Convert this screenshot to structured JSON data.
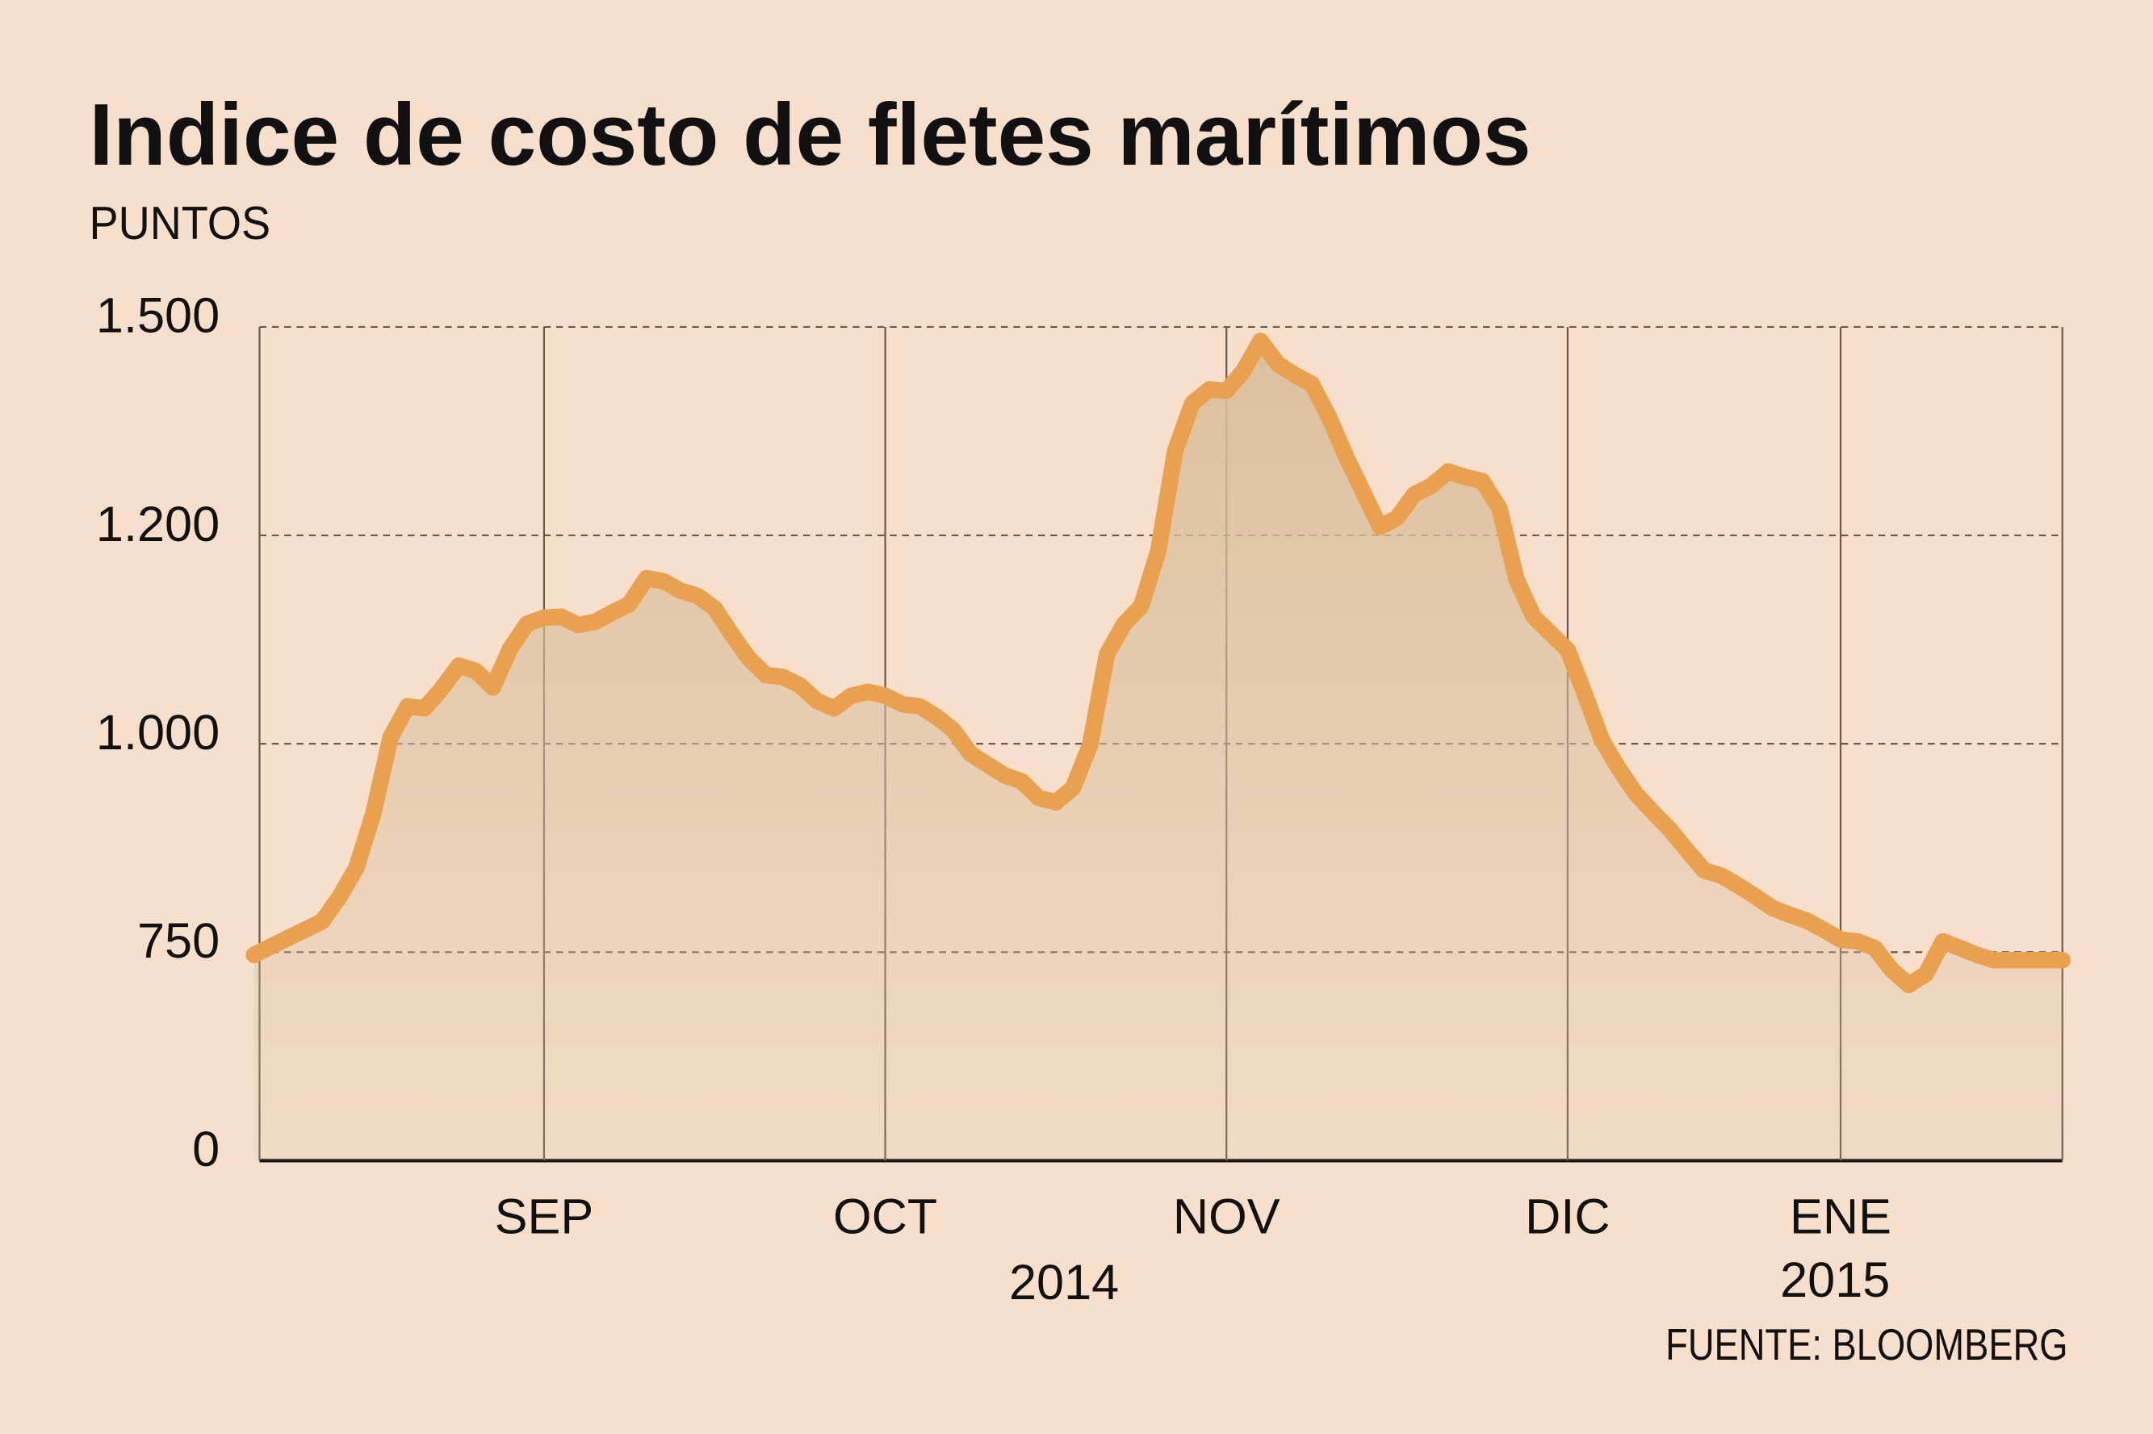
{
  "chart_data": {
    "type": "line",
    "title": "Indice de costo de fletes marítimos",
    "subtitle": "PUNTOS",
    "source": "FUENTE: BLOOMBERG",
    "color": "#e9a04f",
    "area_color": "#d9bf9c",
    "grid": true,
    "ylim": [
      0,
      1500
    ],
    "yticks": [
      0,
      750,
      {
        "value": 1000,
        "label": "1.000"
      },
      {
        "value": 1200,
        "label": "1.200"
      },
      {
        "value": 1500,
        "label": "1.500"
      }
    ],
    "year_labels": [
      "2014",
      "2015"
    ],
    "categories": [
      null,
      null,
      null,
      null,
      null,
      null,
      null,
      null,
      null,
      null,
      null,
      null,
      null,
      null,
      null,
      null,
      null,
      "SEP",
      null,
      null,
      null,
      null,
      null,
      null,
      null,
      null,
      null,
      null,
      null,
      null,
      null,
      null,
      null,
      null,
      null,
      null,
      null,
      "OCT",
      null,
      null,
      null,
      null,
      null,
      null,
      null,
      null,
      null,
      null,
      null,
      null,
      null,
      null,
      null,
      null,
      null,
      null,
      null,
      "NOV",
      null,
      null,
      null,
      null,
      null,
      null,
      null,
      null,
      null,
      null,
      null,
      null,
      null,
      null,
      null,
      null,
      null,
      null,
      null,
      "DIC",
      null,
      null,
      null,
      null,
      null,
      null,
      null,
      null,
      null,
      null,
      null,
      null,
      null,
      null,
      null,
      "ENE",
      null,
      null,
      null,
      null,
      null,
      null,
      null,
      null,
      null,
      null,
      null,
      null,
      null
    ],
    "values": [
      740,
      757,
      767,
      777,
      787,
      816,
      851,
      917,
      1006,
      1036,
      1034,
      1053,
      1075,
      1070,
      1054,
      1091,
      1115,
      1121,
      1122,
      1114,
      1117,
      1126,
      1134,
      1159,
      1156,
      1147,
      1142,
      1130,
      1105,
      1082,
      1066,
      1064,
      1056,
      1041,
      1034,
      1046,
      1050,
      1046,
      1038,
      1036,
      1026,
      1013,
      988,
      975,
      962,
      955,
      935,
      930,
      947,
      998,
      1086,
      1115,
      1132,
      1185,
      1322,
      1390,
      1410,
      1408,
      1437,
      1480,
      1447,
      1431,
      1418,
      1371,
      1314,
      1263,
      1212,
      1225,
      1259,
      1271,
      1292,
      1284,
      1278,
      1239,
      1158,
      1122,
      1106,
      1090,
      1048,
      1004,
      970,
      940,
      918,
      897,
      872,
      848,
      842,
      830,
      817,
      803,
      795,
      788,
      777,
      765,
      763,
      755,
      686,
      632,
      672,
      763,
      755,
      740,
      721,
      721,
      721,
      721,
      721
    ]
  }
}
